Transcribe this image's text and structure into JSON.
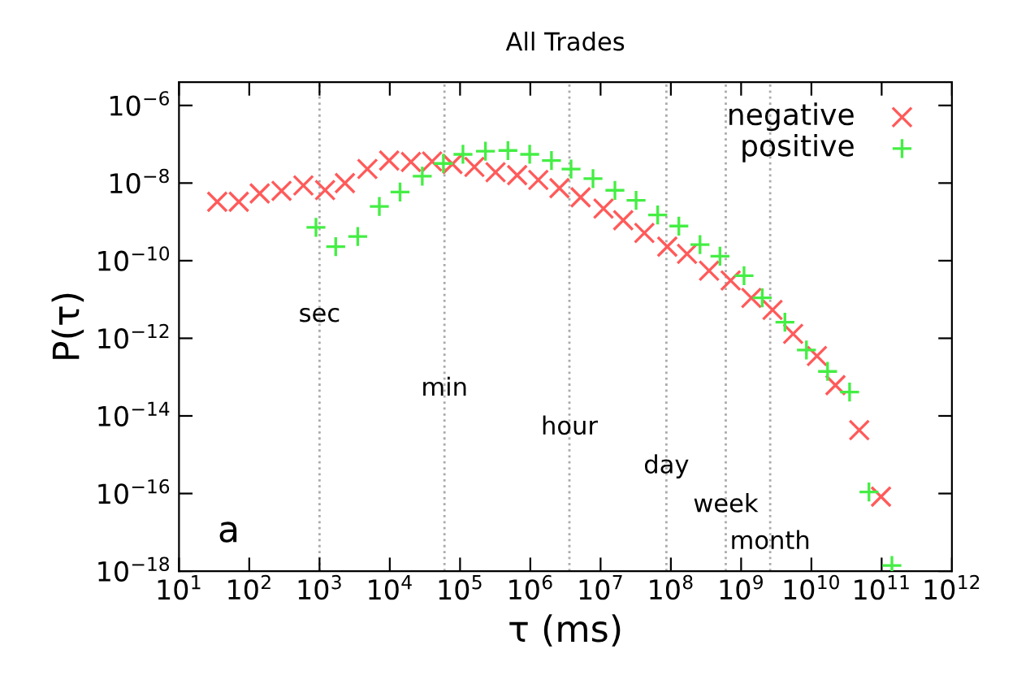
{
  "chart_data": {
    "type": "scatter",
    "title": "All Trades",
    "xlabel": "τ (ms)",
    "ylabel": "P(τ)",
    "log": "xy",
    "legend": "top right",
    "grid": false,
    "xlim": [
      10,
      1000000000000.0
    ],
    "ylim": [
      1e-18,
      4e-06
    ],
    "xticks": [
      {
        "value": 10,
        "label": "10$^{1}$"
      },
      {
        "value": 100,
        "label": "10$^{2}$"
      },
      {
        "value": 1000,
        "label": "10$^{3}$"
      },
      {
        "value": 10000.0,
        "label": "10$^{4}$"
      },
      {
        "value": 100000.0,
        "label": "10$^{5}$"
      },
      {
        "value": 1000000.0,
        "label": "10$^{6}$"
      },
      {
        "value": 10000000.0,
        "label": "10$^{7}$"
      },
      {
        "value": 100000000.0,
        "label": "10$^{8}$"
      },
      {
        "value": 1000000000.0,
        "label": "10$^{9}$"
      },
      {
        "value": 10000000000.0,
        "label": "10$^{10}$"
      },
      {
        "value": 100000000000.0,
        "label": "10$^{11}$"
      },
      {
        "value": 1000000000000.0,
        "label": "10$^{12}$"
      }
    ],
    "yticks": [
      {
        "value": 1e-18,
        "label": "10$^{−18}$"
      },
      {
        "value": 1e-16,
        "label": "10$^{−16}$"
      },
      {
        "value": 1e-14,
        "label": "10$^{−14}$"
      },
      {
        "value": 1e-12,
        "label": "10$^{−12}$"
      },
      {
        "value": 1e-10,
        "label": "10$^{−10}$"
      },
      {
        "value": 1e-08,
        "label": "10$^{−8}$"
      },
      {
        "value": 1e-06,
        "label": "10$^{−6}$"
      }
    ],
    "series": [
      {
        "name": "negative",
        "color": "#ff5a5a",
        "marker": "cross",
        "x": [
          35,
          71,
          141,
          288,
          589,
          1200,
          2300,
          4800,
          9800,
          20000.0,
          40000.0,
          78000.0,
          160000.0,
          320000.0,
          650000.0,
          1300000.0,
          2600000.0,
          5200000.0,
          11000000.0,
          21000000.0,
          42000000.0,
          89000000.0,
          170000000.0,
          350000000.0,
          710000000.0,
          1400000000.0,
          2800000000.0,
          5500000000.0,
          12000000000.0,
          22000000000.0,
          48000000000.0,
          98000000000.0
        ],
        "values": [
          3.3e-09,
          3.3e-09,
          5.4e-09,
          6.3e-09,
          8.7e-09,
          6.6e-09,
          1e-08,
          2.3e-08,
          3.8e-08,
          3.5e-08,
          3.6e-08,
          3.1e-08,
          2.6e-08,
          1.9e-08,
          1.6e-08,
          1.2e-08,
          7.4e-09,
          4.3e-09,
          2.2e-09,
          1.1e-09,
          5.2e-10,
          2.3e-10,
          1.5e-10,
          5.5e-11,
          3.1e-11,
          1.1e-11,
          5.4e-12,
          1.3e-12,
          3.5e-13,
          6.2e-14,
          4.3e-15,
          8.3e-17
        ]
      },
      {
        "name": "positive",
        "color": "#44ee44",
        "marker": "plus",
        "x": [
          890,
          1700,
          3500,
          7100,
          14000.0,
          29000.0,
          58000.0,
          110000.0,
          230000.0,
          480000.0,
          980000.0,
          2000000.0,
          3800000.0,
          7800000.0,
          16000000.0,
          32000000.0,
          65000000.0,
          130000000.0,
          260000000.0,
          500000000.0,
          1100000000.0,
          2000000000.0,
          4200000000.0,
          8500000000.0,
          17000000000.0,
          35000000000.0,
          66000000000.0,
          140000000000.0
        ],
        "values": [
          7.2e-10,
          2.3e-10,
          4.2e-10,
          2.5e-09,
          5.9e-09,
          1.5e-08,
          3.2e-08,
          5.5e-08,
          6.6e-08,
          6.9e-08,
          5.5e-08,
          3.8e-08,
          2.3e-08,
          1.3e-08,
          6.5e-09,
          3.6e-09,
          1.5e-09,
          7.8e-10,
          2.6e-10,
          1.3e-10,
          4.1e-11,
          1.1e-11,
          2.6e-12,
          5e-13,
          1.4e-13,
          4.1e-14,
          1.1e-16,
          1.4e-18
        ]
      }
    ],
    "ref_lines": [
      {
        "axis": "x",
        "value": 1000,
        "color": "#aaaaaa",
        "line_style": "dotted"
      },
      {
        "axis": "x",
        "value": 60000,
        "color": "#aaaaaa",
        "line_style": "dotted"
      },
      {
        "axis": "x",
        "value": 3600000,
        "color": "#aaaaaa",
        "line_style": "dotted"
      },
      {
        "axis": "x",
        "value": 86400000,
        "color": "#aaaaaa",
        "line_style": "dotted"
      },
      {
        "axis": "x",
        "value": 604800000,
        "color": "#aaaaaa",
        "line_style": "dotted"
      },
      {
        "axis": "x",
        "value": 2592000000,
        "color": "#aaaaaa",
        "line_style": "dotted"
      }
    ],
    "annotations": [
      {
        "text": "sec",
        "x": 1000,
        "y": 4e-12
      },
      {
        "text": "min",
        "x": 60000,
        "y": 5e-14
      },
      {
        "text": "hour",
        "x": 3600000,
        "y": 5e-15
      },
      {
        "text": "day",
        "x": 86400000,
        "y": 5e-16
      },
      {
        "text": "week",
        "x": 604800000,
        "y": 5e-17
      },
      {
        "text": "month",
        "x": 2592000000,
        "y": 5.6e-18
      },
      "a"
    ]
  }
}
